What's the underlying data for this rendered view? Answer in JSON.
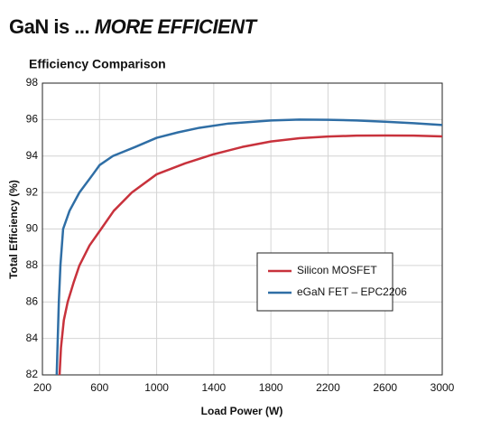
{
  "chart_data": {
    "type": "line",
    "title": "GaN is ...",
    "title_emphasis": "MORE EFFICIENT",
    "subtitle": "Efficiency Comparison",
    "x_label": "Load Power (W)",
    "y_label": "Total Efficiency (%)",
    "xlim": [
      200,
      3000
    ],
    "xticks": [
      200,
      600,
      1000,
      1400,
      1800,
      2200,
      2600,
      3000
    ],
    "ylim": [
      82,
      98
    ],
    "yticks": [
      82,
      84,
      86,
      88,
      90,
      92,
      94,
      96,
      98
    ],
    "grid": true,
    "legend": "right",
    "series": [
      {
        "name": "Silicon MOSFET",
        "color": "#c8323c",
        "x": [
          320,
          330,
          350,
          377,
          420,
          459,
          530,
          611,
          700,
          826,
          1000,
          1200,
          1400,
          1600,
          1800,
          2000,
          2200,
          2400,
          2600,
          2800,
          3000
        ],
        "values": [
          82,
          83.5,
          85,
          86,
          87.1,
          88,
          89.1,
          90,
          91,
          92,
          93,
          93.6,
          94.1,
          94.5,
          94.8,
          94.98,
          95.07,
          95.12,
          95.13,
          95.12,
          95.08
        ]
      },
      {
        "name": "eGaN FET – EPC2206",
        "color": "#2f6ea5",
        "x": [
          300,
          315,
          326,
          345,
          390,
          459,
          554,
          600,
          693,
          850,
          1000,
          1150,
          1300,
          1500,
          1800,
          2000,
          2200,
          2400,
          2600,
          2800,
          3000
        ],
        "values": [
          82,
          86,
          88,
          90,
          91,
          92,
          93,
          93.5,
          94,
          94.5,
          95,
          95.3,
          95.55,
          95.78,
          95.95,
          96,
          95.99,
          95.95,
          95.88,
          95.8,
          95.7
        ]
      }
    ]
  }
}
